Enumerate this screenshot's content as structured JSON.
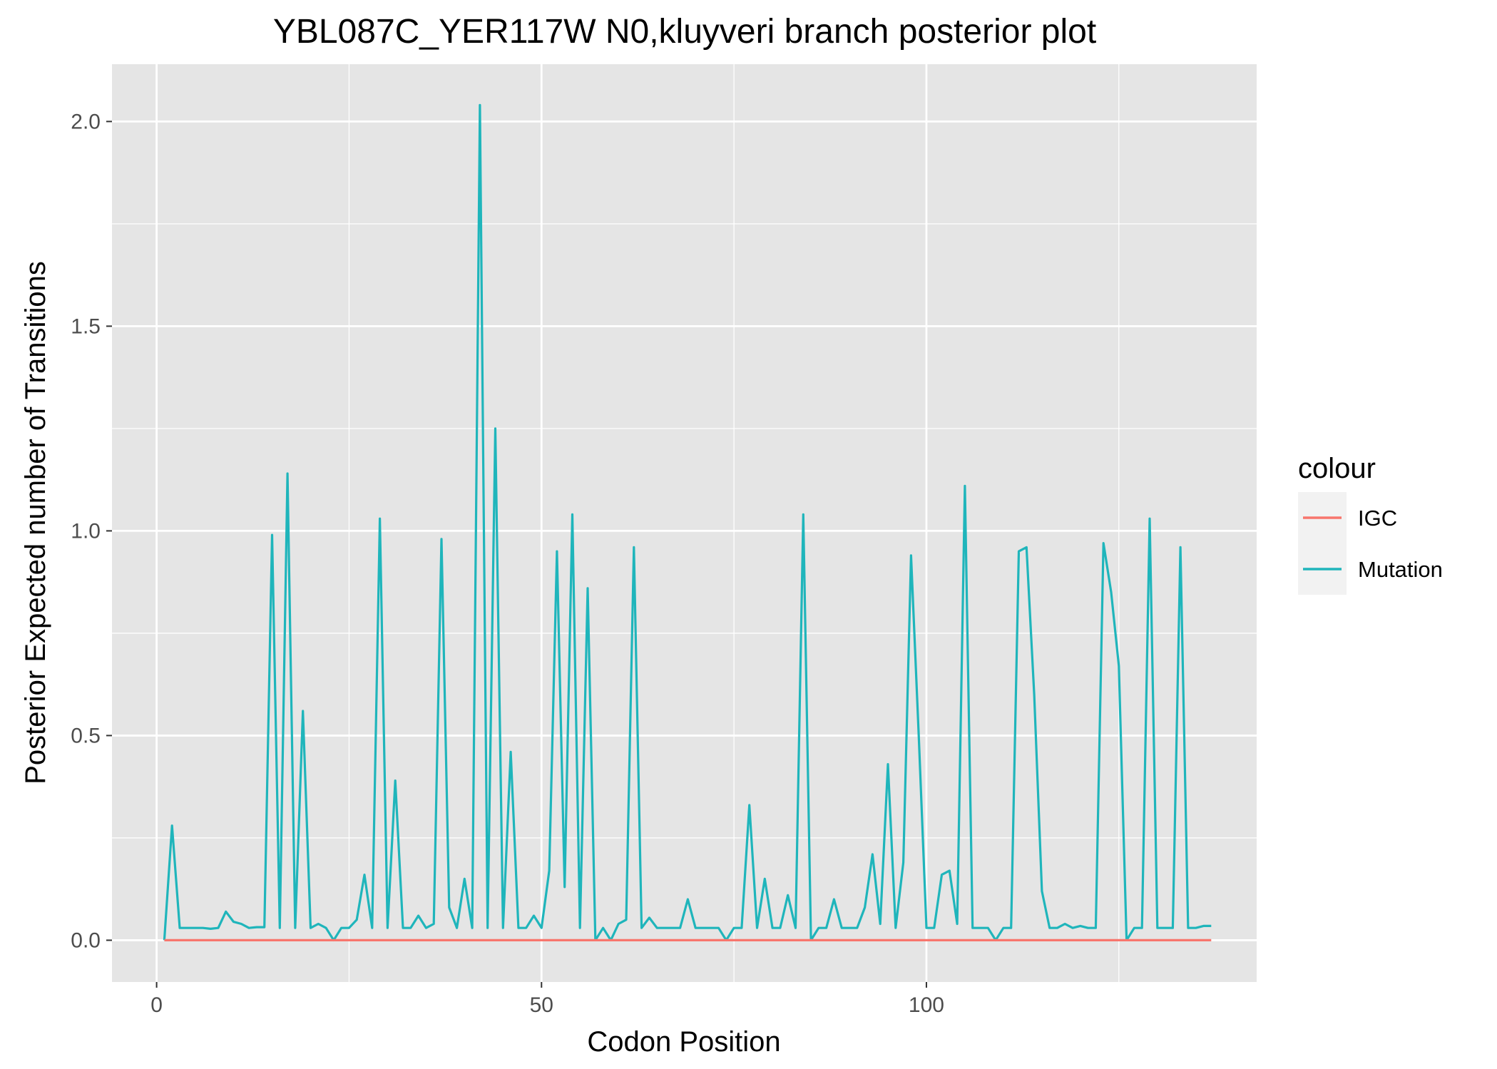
{
  "chart_data": {
    "type": "line",
    "title": "YBL087C_YER117W N0,kluyveri branch posterior plot",
    "xlabel": "Codon Position",
    "ylabel": "Posterior Expected number of Transitions",
    "xlim": [
      -5.8,
      142.9
    ],
    "ylim": [
      -0.102,
      2.14
    ],
    "x_ticks": [
      0,
      50,
      100
    ],
    "x_tick_labels": [
      "0",
      "50",
      "100"
    ],
    "y_ticks": [
      0.0,
      0.5,
      1.0,
      1.5,
      2.0
    ],
    "y_tick_labels": [
      "0.0",
      "0.5",
      "1.0",
      "1.5",
      "2.0"
    ],
    "grid": true,
    "legend": {
      "title": "colour",
      "placement": "right"
    },
    "colors": {
      "panel": "#e5e5e5",
      "grid": "#ffffff"
    },
    "series": [
      {
        "name": "IGC",
        "color": "#f8766d",
        "x": [
          1,
          137
        ],
        "y": [
          0.0,
          0.0
        ]
      },
      {
        "name": "Mutation",
        "color": "#1fb5bb",
        "x": [
          1,
          2,
          3,
          4,
          5,
          6,
          7,
          8,
          9,
          10,
          11,
          12,
          13,
          14,
          15,
          16,
          17,
          18,
          19,
          20,
          21,
          22,
          23,
          24,
          25,
          26,
          27,
          28,
          29,
          30,
          31,
          32,
          33,
          34,
          35,
          36,
          37,
          38,
          39,
          40,
          41,
          42,
          43,
          44,
          45,
          46,
          47,
          48,
          49,
          50,
          51,
          52,
          53,
          54,
          55,
          56,
          57,
          58,
          59,
          60,
          61,
          62,
          63,
          64,
          65,
          66,
          67,
          68,
          69,
          70,
          71,
          72,
          73,
          74,
          75,
          76,
          77,
          78,
          79,
          80,
          81,
          82,
          83,
          84,
          85,
          86,
          87,
          88,
          89,
          90,
          91,
          92,
          93,
          94,
          95,
          96,
          97,
          98,
          99,
          100,
          101,
          102,
          103,
          104,
          105,
          106,
          107,
          108,
          109,
          110,
          111,
          112,
          113,
          114,
          115,
          116,
          117,
          118,
          119,
          120,
          121,
          122,
          123,
          124,
          125,
          126,
          127,
          128,
          129,
          130,
          131,
          132,
          133,
          134,
          135,
          136,
          137
        ],
        "y": [
          0.0,
          0.28,
          0.03,
          0.03,
          0.03,
          0.03,
          0.028,
          0.03,
          0.07,
          0.045,
          0.04,
          0.03,
          0.032,
          0.032,
          0.99,
          0.03,
          1.14,
          0.03,
          0.56,
          0.03,
          0.04,
          0.03,
          0.0,
          0.03,
          0.03,
          0.05,
          0.16,
          0.03,
          1.03,
          0.03,
          0.39,
          0.03,
          0.03,
          0.06,
          0.03,
          0.04,
          0.98,
          0.08,
          0.03,
          0.15,
          0.03,
          2.04,
          0.03,
          1.25,
          0.03,
          0.46,
          0.03,
          0.03,
          0.06,
          0.03,
          0.17,
          0.95,
          0.13,
          1.04,
          0.03,
          0.86,
          0.0,
          0.03,
          0.0,
          0.04,
          0.05,
          0.96,
          0.03,
          0.055,
          0.03,
          0.03,
          0.03,
          0.03,
          0.1,
          0.03,
          0.03,
          0.03,
          0.03,
          0.0,
          0.03,
          0.03,
          0.33,
          0.03,
          0.15,
          0.03,
          0.03,
          0.11,
          0.03,
          1.04,
          0.0,
          0.03,
          0.03,
          0.1,
          0.03,
          0.03,
          0.03,
          0.08,
          0.21,
          0.04,
          0.43,
          0.03,
          0.19,
          0.94,
          0.5,
          0.03,
          0.03,
          0.16,
          0.17,
          0.04,
          1.11,
          0.03,
          0.03,
          0.03,
          0.0,
          0.03,
          0.03,
          0.95,
          0.96,
          0.6,
          0.12,
          0.03,
          0.03,
          0.04,
          0.03,
          0.035,
          0.03,
          0.03,
          0.97,
          0.85,
          0.67,
          0.0,
          0.03,
          0.03,
          1.03,
          0.03,
          0.03,
          0.03,
          0.96,
          0.03,
          0.03,
          0.035,
          0.035
        ]
      }
    ]
  }
}
